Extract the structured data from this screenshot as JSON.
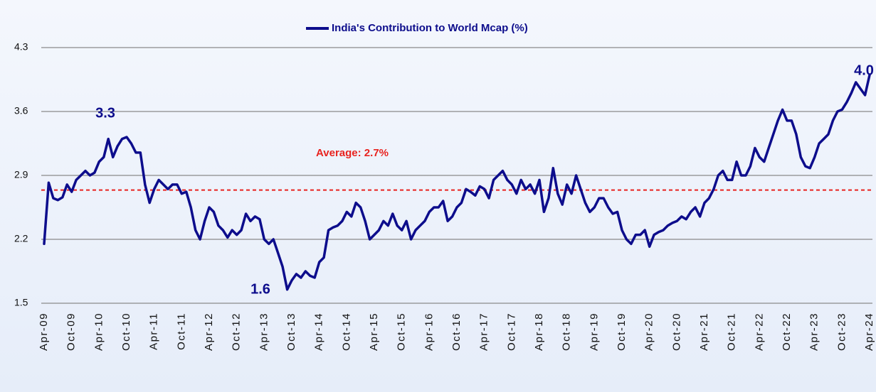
{
  "chart_data": {
    "type": "line",
    "series": [
      {
        "name": "India's Contribution to World Mcap (%)",
        "color": "#0d0d8c",
        "values": [
          2.15,
          2.82,
          2.65,
          2.63,
          2.66,
          2.8,
          2.72,
          2.85,
          2.9,
          2.95,
          2.9,
          2.93,
          3.05,
          3.1,
          3.3,
          3.1,
          3.22,
          3.3,
          3.32,
          3.25,
          3.15,
          3.15,
          2.8,
          2.6,
          2.75,
          2.85,
          2.8,
          2.75,
          2.8,
          2.8,
          2.7,
          2.72,
          2.55,
          2.3,
          2.2,
          2.4,
          2.55,
          2.5,
          2.35,
          2.3,
          2.22,
          2.3,
          2.25,
          2.3,
          2.48,
          2.4,
          2.45,
          2.42,
          2.2,
          2.15,
          2.2,
          2.05,
          1.9,
          1.65,
          1.75,
          1.82,
          1.78,
          1.85,
          1.8,
          1.78,
          1.95,
          2.0,
          2.3,
          2.33,
          2.35,
          2.4,
          2.5,
          2.45,
          2.6,
          2.55,
          2.4,
          2.2,
          2.25,
          2.3,
          2.4,
          2.35,
          2.48,
          2.35,
          2.3,
          2.4,
          2.2,
          2.3,
          2.35,
          2.4,
          2.5,
          2.55,
          2.55,
          2.62,
          2.4,
          2.45,
          2.55,
          2.6,
          2.75,
          2.72,
          2.68,
          2.78,
          2.75,
          2.65,
          2.85,
          2.9,
          2.95,
          2.85,
          2.8,
          2.7,
          2.85,
          2.75,
          2.8,
          2.7,
          2.85,
          2.5,
          2.65,
          2.98,
          2.7,
          2.58,
          2.8,
          2.7,
          2.9,
          2.75,
          2.6,
          2.5,
          2.55,
          2.65,
          2.65,
          2.55,
          2.48,
          2.5,
          2.3,
          2.2,
          2.15,
          2.25,
          2.25,
          2.3,
          2.12,
          2.25,
          2.28,
          2.3,
          2.35,
          2.38,
          2.4,
          2.45,
          2.42,
          2.5,
          2.55,
          2.45,
          2.6,
          2.65,
          2.75,
          2.9,
          2.95,
          2.85,
          2.85,
          3.05,
          2.9,
          2.9,
          3.0,
          3.2,
          3.1,
          3.05,
          3.2,
          3.35,
          3.5,
          3.62,
          3.5,
          3.5,
          3.35,
          3.1,
          3.0,
          2.98,
          3.1,
          3.25,
          3.3,
          3.35,
          3.5,
          3.6,
          3.62,
          3.7,
          3.8,
          3.92,
          3.85,
          3.78,
          4.0
        ]
      }
    ],
    "categories": [
      "Apr-09",
      null,
      null,
      null,
      null,
      null,
      "Oct-09",
      null,
      null,
      null,
      null,
      null,
      "Apr-10",
      null,
      null,
      null,
      null,
      null,
      "Oct-10",
      null,
      null,
      null,
      null,
      null,
      "Apr-11",
      null,
      null,
      null,
      null,
      null,
      "Oct-11",
      null,
      null,
      null,
      null,
      null,
      "Apr-12",
      null,
      null,
      null,
      null,
      null,
      "Oct-12",
      null,
      null,
      null,
      null,
      null,
      "Apr-13",
      null,
      null,
      null,
      null,
      null,
      "Oct-13",
      null,
      null,
      null,
      null,
      null,
      "Apr-14",
      null,
      null,
      null,
      null,
      null,
      "Oct-14",
      null,
      null,
      null,
      null,
      null,
      "Apr-15",
      null,
      null,
      null,
      null,
      null,
      "Oct-15",
      null,
      null,
      null,
      null,
      null,
      "Apr-16",
      null,
      null,
      null,
      null,
      null,
      "Oct-16",
      null,
      null,
      null,
      null,
      null,
      "Apr-17",
      null,
      null,
      null,
      null,
      null,
      "Oct-17",
      null,
      null,
      null,
      null,
      null,
      "Apr-18",
      null,
      null,
      null,
      null,
      null,
      "Oct-18",
      null,
      null,
      null,
      null,
      null,
      "Apr-19",
      null,
      null,
      null,
      null,
      null,
      "Oct-19",
      null,
      null,
      null,
      null,
      null,
      "Apr-20",
      null,
      null,
      null,
      null,
      null,
      "Oct-20",
      null,
      null,
      null,
      null,
      null,
      "Apr-21",
      null,
      null,
      null,
      null,
      null,
      "Oct-21",
      null,
      null,
      null,
      null,
      null,
      "Apr-22",
      null,
      null,
      null,
      null,
      null,
      "Oct-22",
      null,
      null,
      null,
      null,
      null,
      "Apr-23",
      null,
      null,
      null,
      null,
      null,
      "Oct-23",
      null,
      null,
      null,
      null,
      null,
      "Apr-24"
    ],
    "ylim": [
      1.5,
      4.3
    ],
    "yticks": [
      1.5,
      2.2,
      2.9,
      3.6,
      4.3
    ],
    "grid": true,
    "average_line": {
      "value": 2.74,
      "label": "Average: 2.7%",
      "color": "#e8231f"
    },
    "annotations": [
      "3.3",
      "1.6",
      "4.0"
    ]
  }
}
